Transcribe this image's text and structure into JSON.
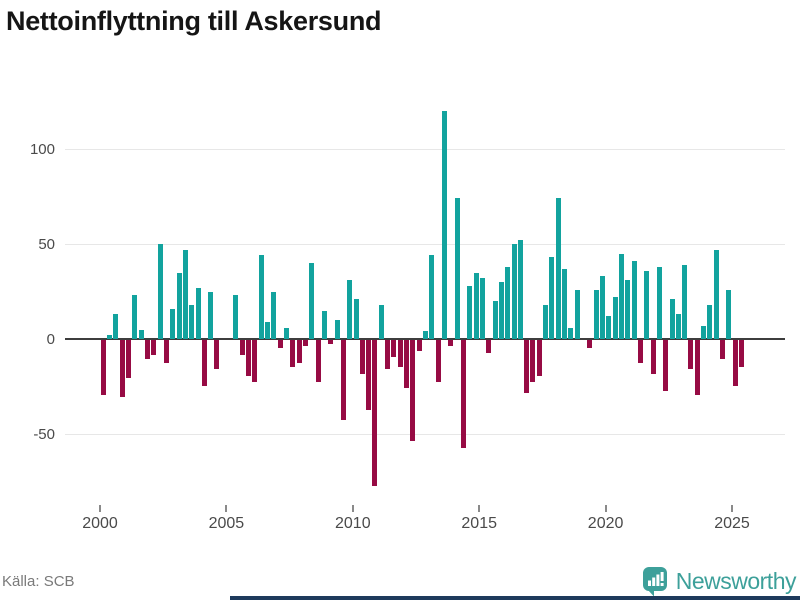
{
  "title": "Nettoinflyttning till Askersund",
  "source": "Källa: SCB",
  "brand": {
    "name": "Newsworthy",
    "color": "#3da09a",
    "icon": "newsworthy-bars-speech-bubble"
  },
  "colors": {
    "positive_bar": "#12a39e",
    "negative_bar": "#970b44",
    "grid": "#e7e7e7",
    "zero_axis": "#3d3d3d",
    "axis_text": "#4a4a4a",
    "title_text": "#151515",
    "source_text": "#7a7a7a",
    "bottom_rule": "#1e3a5c"
  },
  "chart_data": {
    "type": "bar",
    "title": "Nettoinflyttning till Askersund",
    "x_unit": "quarter",
    "start_period": "2000Q1",
    "end_period": "2025Q2",
    "note": "one bar per quarter; 0 = no visible bar (2004Q4, 2005Q1, 2019Q1)",
    "values": [
      -29,
      2,
      13,
      -30,
      -20,
      23,
      5,
      -10,
      -8,
      50,
      -12,
      16,
      35,
      47,
      18,
      27,
      -24,
      25,
      -15,
      0,
      0,
      23,
      -8,
      -19,
      -22,
      44,
      9,
      25,
      -4,
      6,
      -14,
      -12,
      -3,
      40,
      -22,
      15,
      -2,
      10,
      -42,
      31,
      21,
      -18,
      -37,
      -77,
      18,
      -15,
      -9,
      -14,
      -25,
      -53,
      -6,
      4,
      44,
      -22,
      120,
      -3,
      74,
      -57,
      28,
      35,
      32,
      -7,
      20,
      30,
      38,
      50,
      52,
      -28,
      -22,
      -19,
      18,
      43,
      74,
      37,
      6,
      26,
      0,
      -4,
      26,
      33,
      12,
      22,
      45,
      31,
      41,
      -12,
      36,
      -18,
      38,
      -27,
      21,
      13,
      39,
      -15,
      -29,
      7,
      18,
      47,
      -10,
      26,
      -24,
      -14
    ],
    "yticks": [
      100,
      50,
      0,
      -50
    ],
    "xticks": [
      2000,
      2005,
      2010,
      2015,
      2020,
      2025
    ],
    "ylim": [
      -85,
      130
    ],
    "grid": true,
    "legend": false
  }
}
